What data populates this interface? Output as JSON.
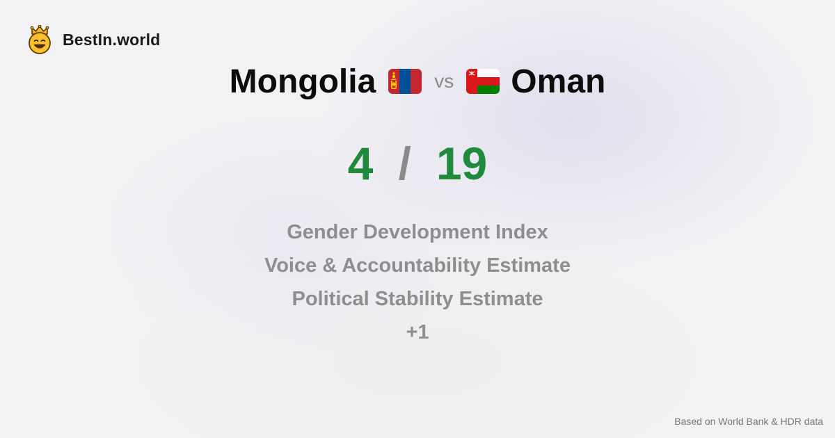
{
  "brand": {
    "name": "BestIn.world",
    "icon": "crowned-smiley-icon"
  },
  "comparison": {
    "left_country": "Mongolia",
    "right_country": "Oman",
    "separator": "vs",
    "left_flag": "mongolia-flag-icon",
    "right_flag": "oman-flag-icon"
  },
  "score": {
    "left": "4",
    "separator": "/",
    "right": "19",
    "color": "#1f8a3b"
  },
  "metrics": {
    "items": [
      "Gender Development Index",
      "Voice & Accountability Estimate",
      "Political Stability Estimate",
      "+1"
    ]
  },
  "footer": {
    "source": "Based on World Bank & HDR data"
  }
}
